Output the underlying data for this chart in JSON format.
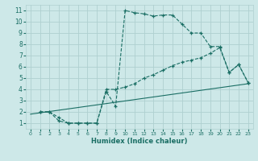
{
  "xlabel": "Humidex (Indice chaleur)",
  "bg_color": "#cde8e8",
  "line_color": "#1a6e64",
  "grid_color": "#afd0d0",
  "xlim": [
    -0.5,
    23.5
  ],
  "ylim": [
    0.5,
    11.5
  ],
  "xticks": [
    0,
    1,
    2,
    3,
    4,
    5,
    6,
    7,
    8,
    9,
    10,
    11,
    12,
    13,
    14,
    15,
    16,
    17,
    18,
    19,
    20,
    21,
    22,
    23
  ],
  "yticks": [
    1,
    2,
    3,
    4,
    5,
    6,
    7,
    8,
    9,
    10,
    11
  ],
  "line1_x": [
    1,
    2,
    3,
    4,
    5,
    6,
    7,
    8,
    9,
    10,
    11,
    12,
    13,
    14,
    15,
    16,
    17,
    18,
    19,
    20,
    21,
    22,
    23
  ],
  "line1_y": [
    2,
    2,
    1.2,
    1,
    1,
    1,
    1,
    3.8,
    2.5,
    11,
    10.8,
    10.7,
    10.5,
    10.6,
    10.6,
    9.8,
    9.0,
    9.0,
    7.8,
    7.8,
    5.5,
    6.2,
    4.6
  ],
  "line2_x": [
    1,
    2,
    3,
    4,
    5,
    6,
    7,
    8,
    9,
    10,
    11,
    12,
    13,
    14,
    15,
    16,
    17,
    18,
    19,
    20,
    21,
    22,
    23
  ],
  "line2_y": [
    2,
    2,
    1.5,
    1,
    1,
    1,
    1,
    4.0,
    4.0,
    4.2,
    4.5,
    5.0,
    5.3,
    5.7,
    6.1,
    6.4,
    6.6,
    6.8,
    7.2,
    7.7,
    5.5,
    6.2,
    4.6
  ],
  "line3_x": [
    0,
    23
  ],
  "line3_y": [
    1.8,
    4.5
  ]
}
